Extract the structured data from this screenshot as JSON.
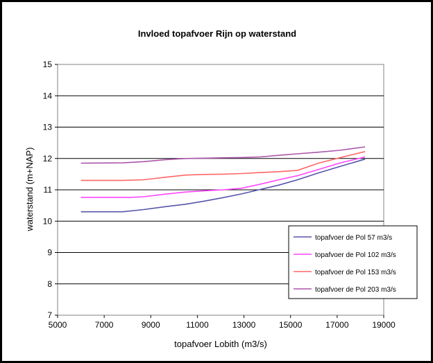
{
  "chart_data": {
    "type": "line",
    "title": "Invloed topafvoer Rijn op waterstand",
    "xlabel": "topafvoer Lobith (m3/s)",
    "ylabel": "waterstand (m+NAP)",
    "xlim": [
      5000,
      19000
    ],
    "ylim": [
      7,
      15
    ],
    "xticks": [
      "5000",
      "7000",
      "9000",
      "11000",
      "13000",
      "15000",
      "17000",
      "19000"
    ],
    "yticks": [
      "7",
      "8",
      "9",
      "10",
      "11",
      "12",
      "13",
      "14",
      "15"
    ],
    "grid": "horizontal",
    "legend_position": "bottom-right",
    "series": [
      {
        "name": "topafvoer de Pol 57 m3/s",
        "color": "#5555aa",
        "x": [
          6000,
          7800,
          8700,
          9600,
          10500,
          11300,
          12100,
          12900,
          13700,
          14500,
          15300,
          16200,
          17100,
          18200
        ],
        "y": [
          10.3,
          10.3,
          10.37,
          10.46,
          10.54,
          10.64,
          10.75,
          10.87,
          11.01,
          11.15,
          11.32,
          11.54,
          11.74,
          11.98
        ]
      },
      {
        "name": "topafvoer de Pol 102 m3/s",
        "color": "#ff44ff",
        "x": [
          6000,
          8100,
          8700,
          9600,
          10500,
          11300,
          12100,
          12900,
          13700,
          14500,
          15300,
          16200,
          17100,
          18200
        ],
        "y": [
          10.76,
          10.76,
          10.78,
          10.86,
          10.93,
          10.97,
          11.0,
          11.05,
          11.18,
          11.32,
          11.45,
          11.65,
          11.85,
          12.05
        ]
      },
      {
        "name": "topafvoer de Pol 153 m3/s",
        "color": "#ff6666",
        "x": [
          6000,
          7800,
          8700,
          9600,
          10500,
          11300,
          12100,
          12900,
          13700,
          14500,
          15300,
          16200,
          17100,
          18200
        ],
        "y": [
          11.3,
          11.3,
          11.32,
          11.4,
          11.47,
          11.49,
          11.5,
          11.52,
          11.55,
          11.58,
          11.62,
          11.85,
          12.02,
          12.22
        ]
      },
      {
        "name": "topafvoer de Pol 203 m3/s",
        "color": "#aa55aa",
        "x": [
          6000,
          7800,
          8700,
          9600,
          10500,
          11300,
          12100,
          12900,
          13700,
          14500,
          15300,
          16200,
          17100,
          18200
        ],
        "y": [
          11.85,
          11.86,
          11.9,
          11.96,
          12.0,
          12.01,
          12.02,
          12.03,
          12.05,
          12.1,
          12.15,
          12.2,
          12.26,
          12.37
        ]
      }
    ]
  }
}
